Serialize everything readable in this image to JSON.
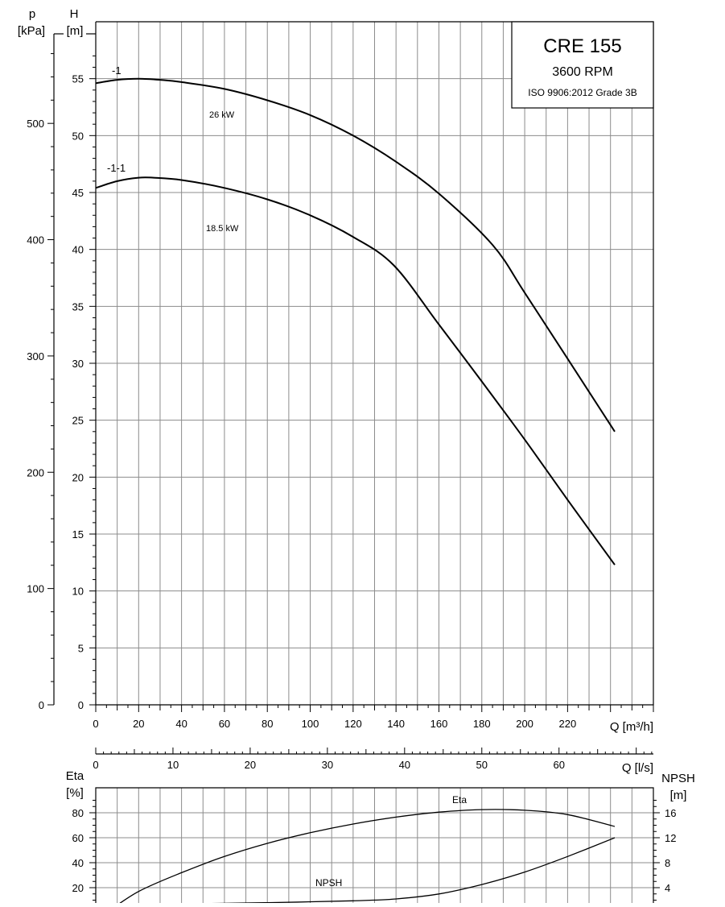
{
  "chart_data": [
    {
      "type": "line",
      "title": "CRE 155",
      "subtitle": "3600 RPM",
      "note": "ISO 9906:2012 Grade 3B",
      "xlabel": "Q [m³/h]",
      "x2label": "Q [l/s]",
      "ylabel_top": "H",
      "ylabel_unit": "[m]",
      "y2label_top": "p",
      "y2label_unit": "[kPa]",
      "xlim": [
        0,
        260
      ],
      "ylim": [
        0,
        60
      ],
      "p_lim": [
        0,
        588
      ],
      "x_ticks": [
        "0",
        "20",
        "40",
        "60",
        "80",
        "100",
        "120",
        "140",
        "160",
        "180",
        "200",
        "220"
      ],
      "x2_ticks": [
        "0",
        "10",
        "20",
        "30",
        "40",
        "50",
        "60"
      ],
      "y_ticks": [
        "5",
        "10",
        "15",
        "20",
        "25",
        "30",
        "35",
        "40",
        "45",
        "50",
        "55"
      ],
      "p_ticks": [
        "0",
        "100",
        "200",
        "300",
        "400",
        "500"
      ],
      "grid": true,
      "series": [
        {
          "name": "-1",
          "power_label": "26 kW",
          "x": [
            0,
            10,
            20,
            30,
            40,
            60,
            80,
            100,
            120,
            140,
            160,
            185,
            200,
            220,
            242
          ],
          "y": [
            54.6,
            54.9,
            55.0,
            54.9,
            54.7,
            54.1,
            53.1,
            51.8,
            50.0,
            47.7,
            44.9,
            40.4,
            36.2,
            30.4,
            24.0
          ]
        },
        {
          "name": "-1-1",
          "power_label": "18.5 kW",
          "x": [
            0,
            10,
            20,
            27,
            40,
            60,
            80,
            100,
            120,
            139,
            160,
            180,
            200,
            220,
            242
          ],
          "y": [
            45.4,
            46.0,
            46.3,
            46.3,
            46.1,
            45.4,
            44.4,
            43.0,
            41.1,
            38.6,
            33.4,
            28.4,
            23.3,
            18.0,
            12.3
          ]
        }
      ]
    },
    {
      "type": "line",
      "ylabel": "Eta",
      "ylabel_unit": "[%]",
      "y2label": "NPSH",
      "y2label_unit": "[m]",
      "eta_ticks": [
        "20",
        "40",
        "60",
        "80"
      ],
      "npsh_ticks": [
        "4",
        "8",
        "12",
        "16"
      ],
      "grid": true,
      "series": [
        {
          "name": "Eta",
          "x": [
            5,
            20,
            40,
            60,
            80,
            100,
            120,
            140,
            160,
            180,
            200,
            220,
            242
          ],
          "y": [
            0.0,
            17.0,
            32.0,
            45.0,
            55.5,
            64.0,
            71.0,
            76.5,
            80.5,
            82.5,
            82.0,
            78.5,
            69.0
          ]
        },
        {
          "name": "NPSH",
          "x": [
            0,
            40,
            80,
            120,
            140,
            160,
            180,
            200,
            220,
            242
          ],
          "y": [
            1.2,
            1.4,
            1.6,
            1.9,
            2.2,
            3.0,
            4.5,
            6.5,
            9.0,
            12.0
          ]
        }
      ]
    }
  ]
}
